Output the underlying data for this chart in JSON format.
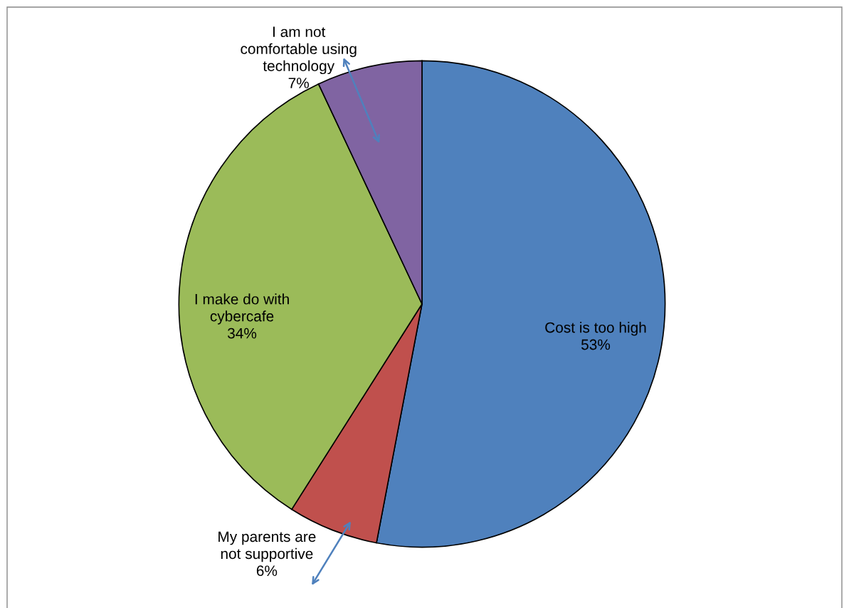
{
  "chart_data": {
    "type": "pie",
    "categories": [
      "Cost is too high",
      "My parents are\nnot supportive",
      "I make do with\ncybercafe",
      "I am not\ncomfortable using\ntechnology"
    ],
    "values": [
      53,
      6,
      34,
      7
    ],
    "colors": [
      "#4f81bd",
      "#c0504d",
      "#9bbb59",
      "#8064a2"
    ],
    "value_labels": [
      "53%",
      "6%",
      "34%",
      "7%"
    ]
  }
}
